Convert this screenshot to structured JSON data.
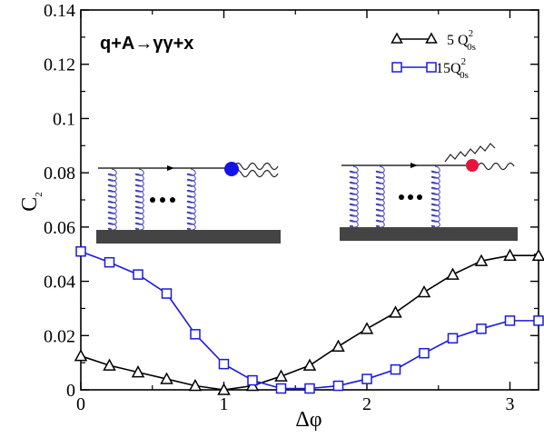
{
  "chart_data": {
    "type": "line",
    "xlabel": "Δφ",
    "ylabel_main": "C",
    "ylabel_sub": "2",
    "xlim": [
      0,
      3.2
    ],
    "ylim": [
      0,
      0.14
    ],
    "x_ticks": [
      0,
      1,
      2,
      3
    ],
    "x_tick_labels": [
      "0",
      "1",
      "2",
      "3"
    ],
    "y_ticks": [
      0,
      0.02,
      0.04,
      0.06,
      0.08,
      0.1,
      0.12,
      0.14
    ],
    "y_tick_labels": [
      "0",
      "0.02",
      "0.04",
      "0.06",
      "0.08",
      "0.1",
      "0.12",
      "0.14"
    ],
    "annotation": "q+A→γγ+x",
    "legend_position": "top-right",
    "series": [
      {
        "name_main": "5 Q",
        "name_sup": "2",
        "name_sub": "0s",
        "color": "#000000",
        "marker": "triangle",
        "x": [
          0,
          0.2,
          0.4,
          0.6,
          0.8,
          1.0,
          1.2,
          1.4,
          1.6,
          1.8,
          2.0,
          2.2,
          2.4,
          2.6,
          2.8,
          3.0,
          3.2
        ],
        "y": [
          0.0125,
          0.009,
          0.0065,
          0.004,
          0.0015,
          0.0,
          0.0015,
          0.005,
          0.009,
          0.016,
          0.0225,
          0.0285,
          0.036,
          0.0425,
          0.0475,
          0.0495,
          0.0495
        ]
      },
      {
        "name_main": "15Q",
        "name_sup": "2",
        "name_sub": "0s",
        "color": "#1a1adb",
        "marker": "square",
        "x": [
          0,
          0.2,
          0.4,
          0.6,
          0.8,
          1.0,
          1.2,
          1.4,
          1.6,
          1.8,
          2.0,
          2.2,
          2.4,
          2.6,
          2.8,
          3.0,
          3.2
        ],
        "y": [
          0.051,
          0.047,
          0.0425,
          0.0355,
          0.0205,
          0.0095,
          0.0035,
          0.0005,
          0.0005,
          0.0015,
          0.004,
          0.0075,
          0.0135,
          0.019,
          0.0225,
          0.0255,
          0.0255
        ]
      }
    ]
  },
  "colors": {
    "left_vertex": "#1414e6",
    "right_vertex": "#e6143c",
    "gluon_coils": "#3c3cb4",
    "nucleus_bar": "#444444"
  }
}
